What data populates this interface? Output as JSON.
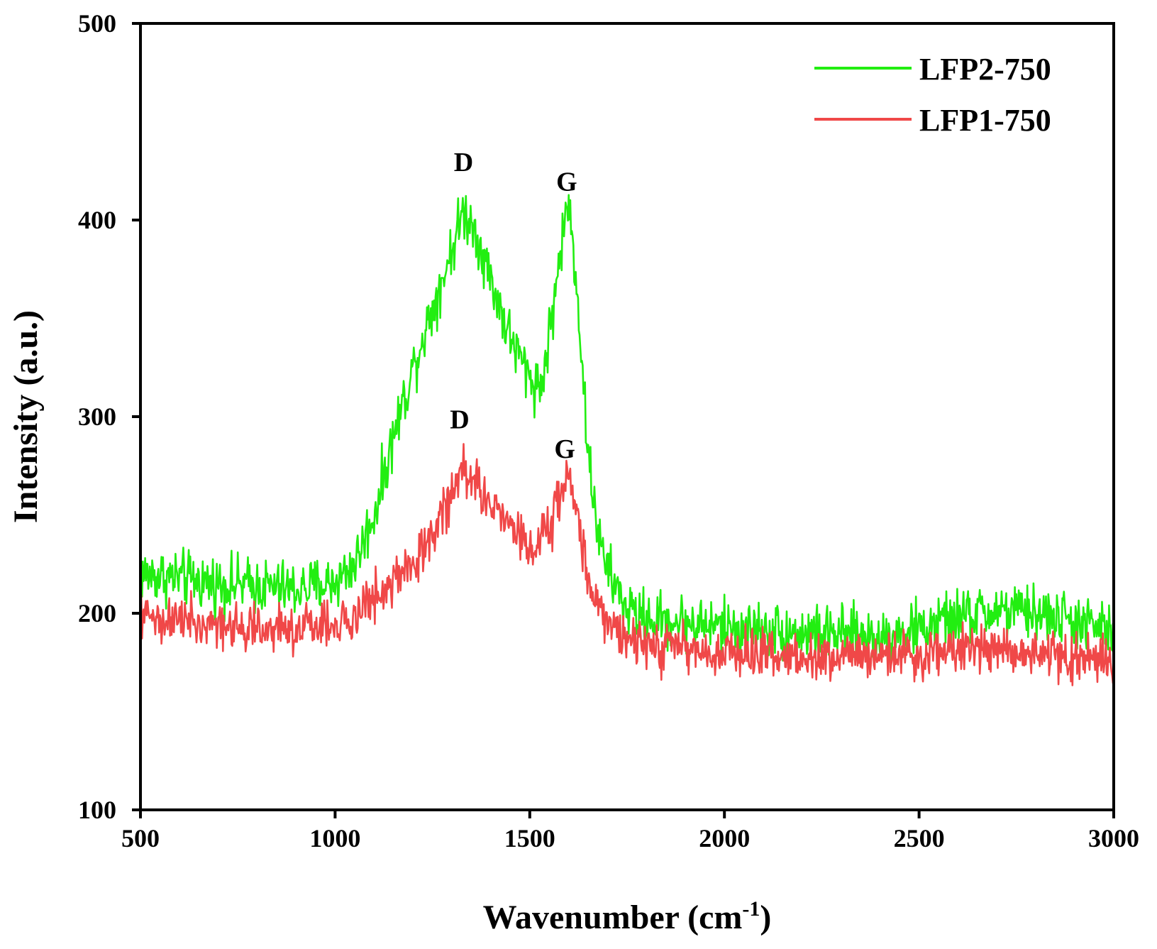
{
  "chart_data": {
    "type": "line",
    "title": "",
    "xlabel": "Wavenumber (cm",
    "xlabel_sup": "-1",
    "xlabel_end": ")",
    "ylabel": "Intensity (a.u.)",
    "xlim": [
      500,
      3000
    ],
    "ylim": [
      100,
      500
    ],
    "xticks": [
      500,
      1000,
      1500,
      2000,
      2500,
      3000
    ],
    "yticks": [
      100,
      200,
      300,
      400,
      500
    ],
    "grid": false,
    "legend_position": "top-right",
    "series": [
      {
        "name": "LFP2-750",
        "color": "#22ee11",
        "noise": 7,
        "x": [
          500,
          600,
          700,
          800,
          900,
          950,
          1000,
          1050,
          1100,
          1150,
          1200,
          1250,
          1300,
          1330,
          1360,
          1400,
          1450,
          1500,
          1530,
          1560,
          1590,
          1600,
          1620,
          1650,
          1680,
          1700,
          1750,
          1800,
          2000,
          2200,
          2400,
          2500,
          2600,
          2700,
          2800,
          2900,
          3000
        ],
        "values": [
          220,
          218,
          215,
          214,
          212,
          214,
          216,
          225,
          250,
          290,
          325,
          355,
          385,
          405,
          395,
          370,
          340,
          320,
          315,
          355,
          400,
          408,
          370,
          280,
          235,
          222,
          202,
          197,
          193,
          190,
          188,
          192,
          198,
          201,
          200,
          196,
          190
        ]
      },
      {
        "name": "LFP1-750",
        "color": "#f04848",
        "noise": 6,
        "x": [
          500,
          600,
          700,
          800,
          900,
          950,
          1000,
          1050,
          1100,
          1150,
          1200,
          1250,
          1300,
          1330,
          1360,
          1400,
          1450,
          1500,
          1550,
          1580,
          1600,
          1620,
          1650,
          1700,
          1800,
          2000,
          2200,
          2400,
          2500,
          2600,
          2700,
          2800,
          2900,
          3000
        ],
        "values": [
          198,
          197,
          195,
          193,
          192,
          193,
          195,
          200,
          207,
          215,
          225,
          240,
          260,
          278,
          265,
          255,
          245,
          235,
          242,
          262,
          268,
          255,
          215,
          195,
          183,
          180,
          178,
          179,
          180,
          182,
          183,
          181,
          178,
          175
        ]
      }
    ],
    "annotations": [
      {
        "text": "D",
        "x": 1330,
        "y": 425
      },
      {
        "text": "G",
        "x": 1595,
        "y": 415
      },
      {
        "text": "D",
        "x": 1320,
        "y": 294
      },
      {
        "text": "G",
        "x": 1590,
        "y": 279
      }
    ]
  }
}
